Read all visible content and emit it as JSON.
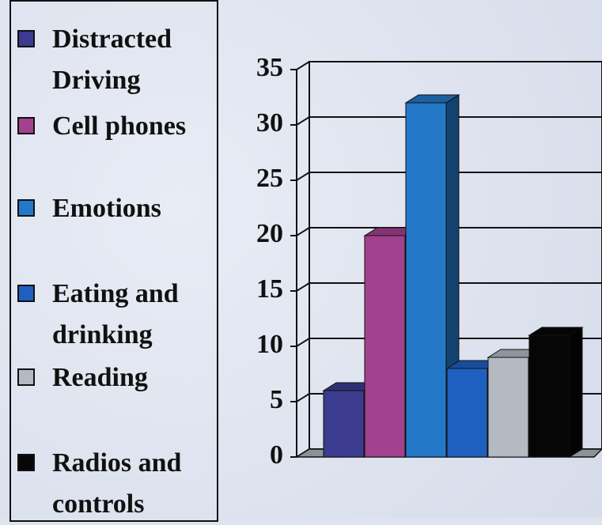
{
  "chart_data": {
    "type": "bar3d",
    "categories": [
      null
    ],
    "series": [
      {
        "name": "Distracted Driving",
        "color": "#3b3b8f",
        "values": [
          6
        ]
      },
      {
        "name": "Cell phones",
        "color": "#a3418f",
        "values": [
          20
        ]
      },
      {
        "name": "Emotions",
        "color": "#2478c8",
        "values": [
          32
        ]
      },
      {
        "name": "Eating and drinking",
        "color": "#1f5fc0",
        "values": [
          8
        ]
      },
      {
        "name": "Reading",
        "color": "#b3bac2",
        "values": [
          9
        ]
      },
      {
        "name": "Radios and controls",
        "color": "#060606",
        "values": [
          11
        ]
      }
    ],
    "ylim": [
      0,
      35
    ],
    "yticks": [
      0,
      5,
      10,
      15,
      20,
      25,
      30,
      35
    ],
    "grid": true,
    "legend": "left"
  }
}
